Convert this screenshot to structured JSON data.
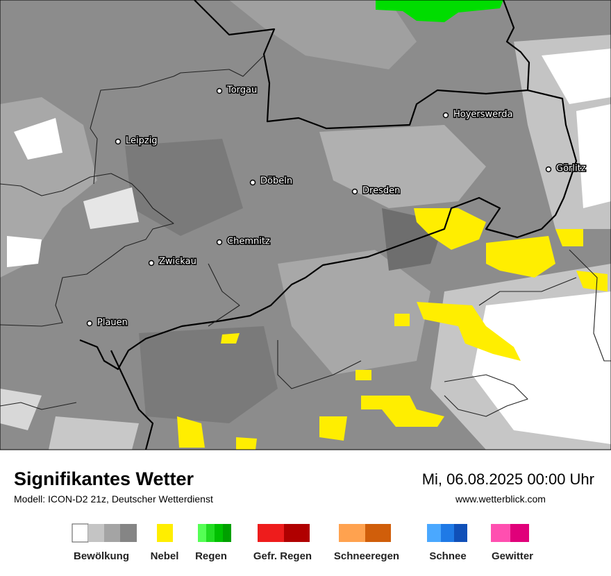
{
  "header": {
    "title": "Signifikantes Wetter",
    "subtitle": "Modell: ICON-D2 21z, Deutscher Wetterdienst",
    "datetime": "Mi, 06.08.2025 00:00 Uhr",
    "website": "www.wetterblick.com"
  },
  "cities": [
    {
      "label": "Torgau"
    },
    {
      "label": "Hoyerswerda"
    },
    {
      "label": "Leipzig"
    },
    {
      "label": "Görlitz"
    },
    {
      "label": "Döbeln"
    },
    {
      "label": "Dresden"
    },
    {
      "label": "Chemnitz"
    },
    {
      "label": "Zwickau"
    },
    {
      "label": "Plauen"
    }
  ],
  "legend": [
    {
      "label": "Bewölkung"
    },
    {
      "label": "Nebel"
    },
    {
      "label": "Regen"
    },
    {
      "label": "Gefr. Regen"
    },
    {
      "label": "Schneeregen"
    },
    {
      "label": "Schnee"
    },
    {
      "label": "Gewitter"
    }
  ]
}
